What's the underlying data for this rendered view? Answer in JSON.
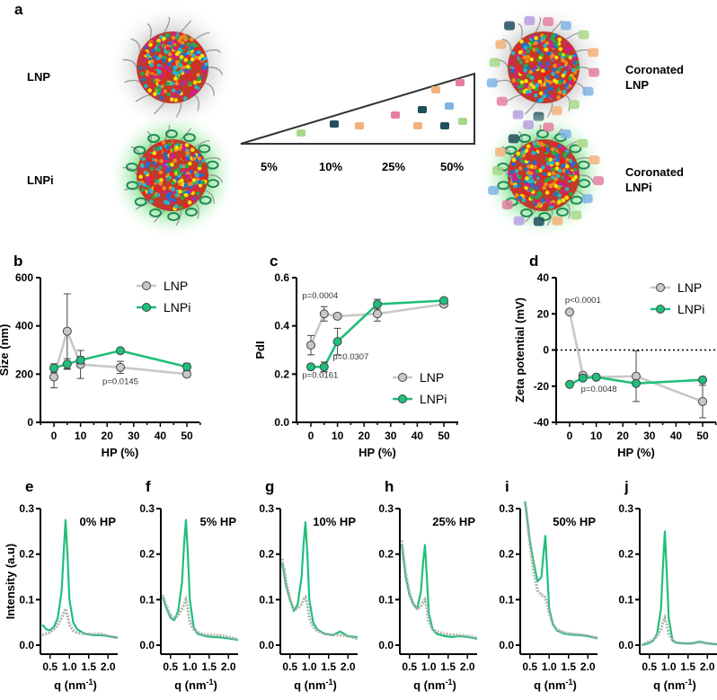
{
  "figure": {
    "panel_a": {
      "letter": "a",
      "label_lnp": "LNP",
      "label_lnpi": "LNPi",
      "label_coronated_lnp": [
        "Coronated",
        "LNP"
      ],
      "label_coronated_lnpi": [
        "Coronated",
        "LNPi"
      ],
      "percentages": [
        "5%",
        "10%",
        "25%",
        "50%"
      ]
    },
    "colors": {
      "lnp": "#c8c8c8",
      "lnpi": "#1fbf7a",
      "axis": "#000000"
    }
  },
  "chart_data": [
    {
      "id": "b",
      "letter": "b",
      "type": "line",
      "xlabel": "HP (%)",
      "ylabel": "Size (nm)",
      "xlim": [
        -5,
        55
      ],
      "ylim": [
        0,
        600
      ],
      "xticks": [
        "0",
        "10",
        "20",
        "30",
        "40",
        "50"
      ],
      "yticks": [
        "0",
        "200",
        "400",
        "600"
      ],
      "x": [
        0,
        5,
        10,
        25,
        50
      ],
      "series": [
        {
          "name": "LNP",
          "values": [
            188,
            378,
            240,
            228,
            200
          ],
          "errors": [
            45,
            155,
            58,
            25,
            10
          ]
        },
        {
          "name": "LNPi",
          "values": [
            225,
            242,
            258,
            297,
            230
          ],
          "errors": [
            18,
            22,
            15,
            5,
            15
          ]
        }
      ],
      "annotations": [
        {
          "text": "p=0.0145",
          "x": 25,
          "y": 158
        }
      ],
      "legend": "top-right"
    },
    {
      "id": "c",
      "letter": "c",
      "type": "line",
      "xlabel": "HP (%)",
      "ylabel": "PdI",
      "xlim": [
        -5,
        55
      ],
      "ylim": [
        0,
        0.6
      ],
      "xticks": [
        "0",
        "10",
        "20",
        "30",
        "40",
        "50"
      ],
      "yticks": [
        "0.0",
        "0.2",
        "0.4",
        "0.6"
      ],
      "x": [
        0,
        5,
        10,
        25,
        50
      ],
      "series": [
        {
          "name": "LNP",
          "values": [
            0.32,
            0.45,
            0.44,
            0.45,
            0.49
          ],
          "errors": [
            0.04,
            0.03,
            0.01,
            0.03,
            0.01
          ]
        },
        {
          "name": "LNPi",
          "values": [
            0.23,
            0.23,
            0.335,
            0.49,
            0.505
          ],
          "errors": [
            0.01,
            0.02,
            0.055,
            0.02,
            0.01
          ]
        }
      ],
      "annotations": [
        {
          "text": "p=0.0004",
          "x": 3.5,
          "y": 0.515
        },
        {
          "text": "p=0.0161",
          "x": 3.5,
          "y": 0.185
        },
        {
          "text": "p=0.0307",
          "x": 15,
          "y": 0.26
        }
      ],
      "legend": "bottom-right"
    },
    {
      "id": "d",
      "letter": "d",
      "type": "line",
      "xlabel": "HP (%)",
      "ylabel": "Zeta potential (mV)",
      "xlim": [
        -5,
        55
      ],
      "ylim": [
        -40,
        40
      ],
      "xticks": [
        "0",
        "10",
        "20",
        "30",
        "40",
        "50"
      ],
      "yticks": [
        "-40",
        "-20",
        "0",
        "20",
        "40"
      ],
      "x": [
        0,
        5,
        10,
        25,
        50
      ],
      "series": [
        {
          "name": "LNP",
          "values": [
            21,
            -14,
            -15,
            -14.5,
            -28.5
          ],
          "errors": [
            0,
            0,
            0,
            14,
            9
          ]
        },
        {
          "name": "LNPi",
          "values": [
            -19,
            -15.5,
            -15,
            -18.5,
            -16.5
          ],
          "errors": [
            0,
            1,
            0,
            0,
            0
          ]
        }
      ],
      "annotations": [
        {
          "text": "p<0.0001",
          "x": 5,
          "y": 26
        },
        {
          "text": "p=0.0048",
          "x": 11,
          "y": -23
        }
      ],
      "reference_line": 0,
      "legend": "top-right"
    },
    {
      "id": "saxs",
      "type": "line",
      "xlabel": "q (nm",
      "xlabel_sup": "-1",
      "xlabel_end": ")",
      "ylabel": "Intensity (a.u)",
      "xlim": [
        0.25,
        2.25
      ],
      "ylim": [
        -0.02,
        0.3
      ],
      "xticks": [
        "0.5",
        "1.0",
        "1.5",
        "2.0"
      ],
      "yticks": [
        "0.0",
        "0.1",
        "0.2",
        "0.3"
      ],
      "q": [
        0.3,
        0.4,
        0.5,
        0.6,
        0.7,
        0.8,
        0.85,
        0.9,
        0.95,
        1.0,
        1.1,
        1.2,
        1.4,
        1.6,
        1.8,
        2.0,
        2.2,
        2.3
      ],
      "panels": [
        {
          "letter": "e",
          "title": "0% HP",
          "LNPi": [
            0.045,
            0.035,
            0.033,
            0.04,
            0.06,
            0.12,
            0.2,
            0.275,
            0.2,
            0.1,
            0.05,
            0.035,
            0.025,
            0.022,
            0.022,
            0.02,
            0.017,
            0.016
          ],
          "LNP": [
            0.022,
            0.025,
            0.028,
            0.035,
            0.045,
            0.06,
            0.07,
            0.08,
            0.065,
            0.045,
            0.032,
            0.027,
            0.025,
            0.024,
            0.025,
            0.02,
            0.017,
            0.016
          ]
        },
        {
          "letter": "f",
          "title": "5% HP",
          "LNPi": [
            0.105,
            0.08,
            0.06,
            0.055,
            0.075,
            0.14,
            0.22,
            0.275,
            0.2,
            0.1,
            0.04,
            0.025,
            0.02,
            0.018,
            0.017,
            0.015,
            0.012,
            0.011
          ],
          "LNP": [
            0.11,
            0.085,
            0.065,
            0.06,
            0.065,
            0.08,
            0.09,
            0.1,
            0.08,
            0.05,
            0.035,
            0.028,
            0.023,
            0.022,
            0.022,
            0.018,
            0.014,
            0.012
          ]
        },
        {
          "letter": "g",
          "title": "10% HP",
          "LNPi": [
            0.18,
            0.13,
            0.1,
            0.075,
            0.09,
            0.15,
            0.22,
            0.27,
            0.2,
            0.1,
            0.05,
            0.035,
            0.025,
            0.022,
            0.03,
            0.02,
            0.018,
            0.016
          ],
          "LNP": [
            0.19,
            0.14,
            0.1,
            0.08,
            0.08,
            0.09,
            0.1,
            0.105,
            0.09,
            0.06,
            0.04,
            0.032,
            0.025,
            0.023,
            0.022,
            0.02,
            0.015,
            0.014
          ]
        },
        {
          "letter": "h",
          "title": "25% HP",
          "LNPi": [
            0.22,
            0.15,
            0.11,
            0.09,
            0.08,
            0.12,
            0.18,
            0.22,
            0.15,
            0.07,
            0.035,
            0.025,
            0.02,
            0.018,
            0.02,
            0.018,
            0.015,
            0.013
          ],
          "LNP": [
            0.23,
            0.16,
            0.115,
            0.09,
            0.08,
            0.085,
            0.095,
            0.1,
            0.08,
            0.05,
            0.035,
            0.03,
            0.025,
            0.023,
            0.022,
            0.02,
            0.017,
            0.015
          ]
        },
        {
          "letter": "i",
          "title": "50% HP",
          "LNPi": [
            0.36,
            0.3,
            0.23,
            0.18,
            0.14,
            0.15,
            0.2,
            0.24,
            0.16,
            0.08,
            0.045,
            0.032,
            0.025,
            0.023,
            0.022,
            0.02,
            0.016,
            0.014
          ],
          "LNP": [
            0.36,
            0.3,
            0.22,
            0.16,
            0.12,
            0.11,
            0.11,
            0.105,
            0.09,
            0.07,
            0.045,
            0.035,
            0.028,
            0.025,
            0.023,
            0.02,
            0.017,
            0.015
          ]
        },
        {
          "letter": "j",
          "title": "",
          "LNPi": [
            0.0,
            0.002,
            0.005,
            0.01,
            0.025,
            0.08,
            0.17,
            0.25,
            0.16,
            0.06,
            0.01,
            0.005,
            0.004,
            0.004,
            0.008,
            0.004,
            0.002,
            0.002
          ],
          "LNP": [
            0.0,
            0.005,
            0.008,
            0.012,
            0.02,
            0.035,
            0.05,
            0.06,
            0.045,
            0.025,
            0.01,
            0.006,
            0.004,
            0.004,
            0.006,
            0.004,
            0.003,
            0.002
          ]
        }
      ]
    }
  ]
}
